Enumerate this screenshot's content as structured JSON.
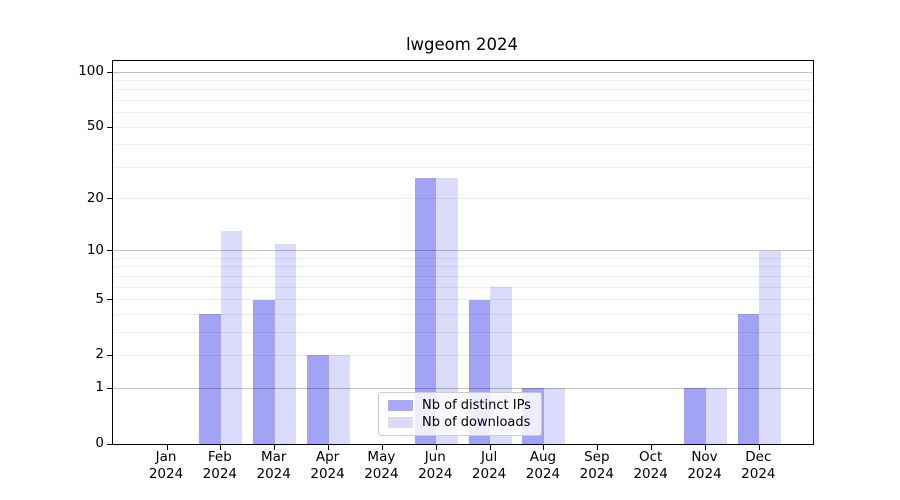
{
  "title": "lwgeom 2024",
  "colors": {
    "distinct_ips_bar": "#a9a9f5",
    "downloads_bar": "#dbdbf9",
    "grid_major": "#c2c2c2",
    "grid_minor": "#ececec",
    "axis": "#000000",
    "legend_border": "#cccccc"
  },
  "legend": {
    "items": [
      {
        "label": "Nb of distinct IPs",
        "color": "#a9a9f5"
      },
      {
        "label": "Nb of downloads",
        "color": "#dbdbf9"
      }
    ]
  },
  "chart_data": {
    "type": "bar",
    "title": "lwgeom 2024",
    "xlabel": "",
    "ylabel": "",
    "scale": "log1p",
    "ylim": [
      0,
      115
    ],
    "grid": true,
    "legend_position": "lower center",
    "categories": [
      "Jan",
      "Feb",
      "Mar",
      "Apr",
      "May",
      "Jun",
      "Jul",
      "Aug",
      "Sep",
      "Oct",
      "Nov",
      "Dec"
    ],
    "category_year": "2024",
    "series": [
      {
        "name": "Nb of distinct IPs",
        "values": [
          0,
          4,
          5,
          2,
          0,
          26,
          5,
          1,
          0,
          0,
          1,
          4
        ]
      },
      {
        "name": "Nb of downloads",
        "values": [
          0,
          13,
          11,
          2,
          0,
          26,
          6,
          1,
          0,
          0,
          1,
          10
        ]
      }
    ],
    "y_ticks": [
      0,
      1,
      2,
      5,
      10,
      20,
      50,
      100
    ],
    "major_gridlines": [
      1,
      10,
      100
    ],
    "minor_gridlines": [
      2,
      3,
      4,
      5,
      6,
      7,
      8,
      9,
      20,
      30,
      40,
      50,
      60,
      70,
      80,
      90
    ]
  }
}
